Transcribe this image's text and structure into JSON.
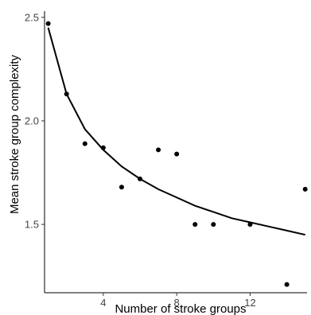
{
  "chart_data": {
    "type": "scatter",
    "xlabel": "Number of stroke groups",
    "ylabel": "Mean stroke group complexity",
    "xlim": [
      0.8,
      15.1
    ],
    "ylim": [
      1.17,
      2.53
    ],
    "x_ticks": [
      4,
      8,
      12
    ],
    "y_ticks": [
      1.5,
      2.0,
      2.5
    ],
    "x_tick_labels": [
      "4",
      "8",
      "12"
    ],
    "y_tick_labels": [
      "1.5",
      "2.0",
      "2.5"
    ],
    "grid": false,
    "points": [
      {
        "x": 1,
        "y": 2.47
      },
      {
        "x": 2,
        "y": 2.13
      },
      {
        "x": 3,
        "y": 1.89
      },
      {
        "x": 4,
        "y": 1.87
      },
      {
        "x": 5,
        "y": 1.68
      },
      {
        "x": 6,
        "y": 1.72
      },
      {
        "x": 7,
        "y": 1.86
      },
      {
        "x": 8,
        "y": 1.84
      },
      {
        "x": 9,
        "y": 1.5
      },
      {
        "x": 10,
        "y": 1.5
      },
      {
        "x": 12,
        "y": 1.5
      },
      {
        "x": 14,
        "y": 1.21
      },
      {
        "x": 15,
        "y": 1.67
      }
    ],
    "fit_curve": {
      "type": "power",
      "x": [
        1,
        2,
        3,
        4,
        5,
        6,
        7,
        8,
        9,
        10,
        11,
        12,
        13,
        14,
        15
      ],
      "y": [
        2.45,
        2.13,
        1.96,
        1.86,
        1.78,
        1.72,
        1.67,
        1.63,
        1.59,
        1.56,
        1.53,
        1.51,
        1.49,
        1.47,
        1.45
      ]
    },
    "colors": {
      "points": "#000000",
      "curve": "#000000",
      "axes": "#000000"
    }
  }
}
